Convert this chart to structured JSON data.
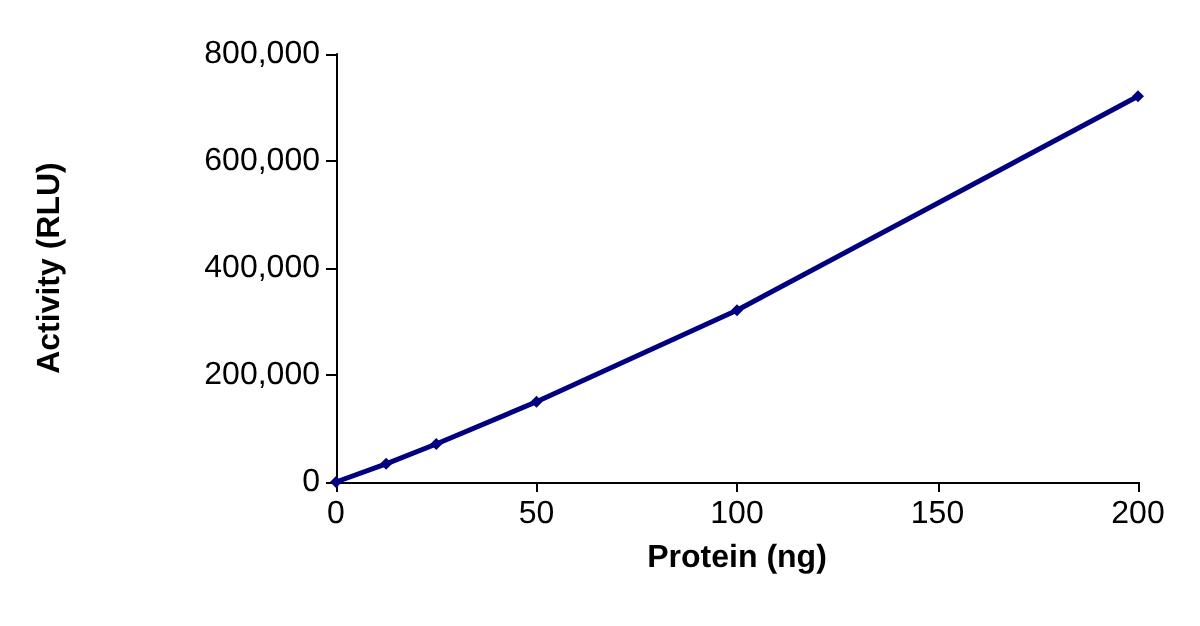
{
  "chart_data": {
    "type": "line",
    "xlabel": "Protein (ng)",
    "ylabel": "Activity (RLU)",
    "x": [
      0,
      12.5,
      25,
      50,
      100,
      200
    ],
    "series": [
      {
        "color": "#000080",
        "values": [
          0,
          34000,
          71000,
          150000,
          321000,
          721000
        ]
      }
    ],
    "xlim": [
      0,
      200
    ],
    "xticks": [
      0,
      50,
      100,
      150,
      200
    ],
    "ylim": [
      0,
      800000
    ],
    "yticks": [
      {
        "value": 0,
        "label": "0"
      },
      {
        "value": 200000,
        "label": "200,000"
      },
      {
        "value": 400000,
        "label": "400,000"
      },
      {
        "value": 600000,
        "label": "600,000"
      },
      {
        "value": 800000,
        "label": "800,000"
      }
    ],
    "grid": false,
    "marker": "diamond",
    "line_style": "solid"
  }
}
